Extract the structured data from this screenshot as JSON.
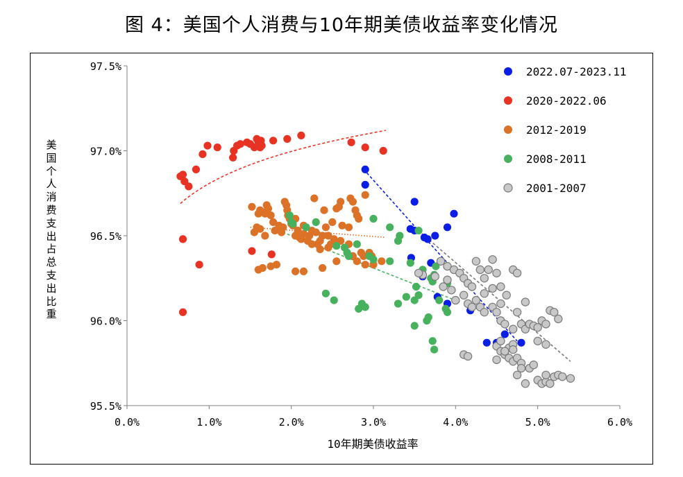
{
  "title": "图 4：美国个人消费与10年期美债收益率变化情况",
  "chart_data": {
    "type": "scatter",
    "xlabel": "10年期美债收益率",
    "ylabel": "美国个人消费支出占总支出比重",
    "xlim": [
      0.0,
      6.0
    ],
    "ylim": [
      95.5,
      97.5
    ],
    "x_ticks": [
      0,
      1,
      2,
      3,
      4,
      5,
      6
    ],
    "y_ticks": [
      95.5,
      96.0,
      96.5,
      97.0,
      97.5
    ],
    "x_tick_labels": [
      "0.0%",
      "1.0%",
      "2.0%",
      "3.0%",
      "4.0%",
      "5.0%",
      "6.0%"
    ],
    "y_tick_labels": [
      "95.5%",
      "96.0%",
      "96.5%",
      "97.0%",
      "97.5%"
    ],
    "grid": false,
    "legend_position": "top-right",
    "series": [
      {
        "name": "2022.07-2023.11",
        "color": "#0b1ee6",
        "hollow": false,
        "trend": {
          "type": "line",
          "x": [
            2.92,
            4.75
          ],
          "y": [
            96.87,
            95.88
          ],
          "style": "dashed"
        },
        "points": [
          [
            2.9,
            96.89
          ],
          [
            2.9,
            96.8
          ],
          [
            3.5,
            96.7
          ],
          [
            3.98,
            96.63
          ],
          [
            3.9,
            96.55
          ],
          [
            3.45,
            96.54
          ],
          [
            3.5,
            96.53
          ],
          [
            3.75,
            96.5
          ],
          [
            3.62,
            96.49
          ],
          [
            3.66,
            96.48
          ],
          [
            3.46,
            96.37
          ],
          [
            3.7,
            96.34
          ],
          [
            3.6,
            96.26
          ],
          [
            3.78,
            96.14
          ],
          [
            3.9,
            96.1
          ],
          [
            4.18,
            96.06
          ],
          [
            4.6,
            95.92
          ],
          [
            4.38,
            95.87
          ],
          [
            4.5,
            95.87
          ],
          [
            4.8,
            95.87
          ]
        ]
      },
      {
        "name": "2020-2022.06",
        "color": "#e83223",
        "hollow": false,
        "trend": {
          "type": "log",
          "x": [
            0.65,
            3.15
          ],
          "y": [
            96.69,
            97.12
          ],
          "style": "dashed"
        },
        "points": [
          [
            0.65,
            96.85
          ],
          [
            0.68,
            96.86
          ],
          [
            0.7,
            96.82
          ],
          [
            0.75,
            96.79
          ],
          [
            0.84,
            96.89
          ],
          [
            0.92,
            96.98
          ],
          [
            0.98,
            97.03
          ],
          [
            1.1,
            97.02
          ],
          [
            1.29,
            96.96
          ],
          [
            1.3,
            97.0
          ],
          [
            1.34,
            97.03
          ],
          [
            1.38,
            97.04
          ],
          [
            1.46,
            97.05
          ],
          [
            1.5,
            97.04
          ],
          [
            1.55,
            97.02
          ],
          [
            1.58,
            97.07
          ],
          [
            1.6,
            97.05
          ],
          [
            1.63,
            97.06
          ],
          [
            1.62,
            97.02
          ],
          [
            1.64,
            97.03
          ],
          [
            1.78,
            97.06
          ],
          [
            1.95,
            97.07
          ],
          [
            2.12,
            97.09
          ],
          [
            2.73,
            97.05
          ],
          [
            2.9,
            97.02
          ],
          [
            3.12,
            97.0
          ],
          [
            0.68,
            96.48
          ],
          [
            0.88,
            96.33
          ],
          [
            1.52,
            96.41
          ],
          [
            1.76,
            96.39
          ],
          [
            0.68,
            96.05
          ]
        ]
      },
      {
        "name": "2012-2019",
        "color": "#db7228",
        "hollow": false,
        "trend": {
          "type": "line",
          "x": [
            1.5,
            3.15
          ],
          "y": [
            96.55,
            96.49
          ],
          "style": "dotted"
        },
        "points": [
          [
            1.52,
            96.67
          ],
          [
            1.58,
            96.55
          ],
          [
            1.6,
            96.63
          ],
          [
            1.62,
            96.65
          ],
          [
            1.65,
            96.64
          ],
          [
            1.68,
            96.63
          ],
          [
            1.7,
            96.68
          ],
          [
            1.72,
            96.66
          ],
          [
            1.75,
            96.62
          ],
          [
            1.78,
            96.58
          ],
          [
            1.8,
            96.53
          ],
          [
            1.85,
            96.56
          ],
          [
            1.88,
            96.52
          ],
          [
            1.9,
            96.55
          ],
          [
            1.92,
            96.7
          ],
          [
            1.94,
            96.68
          ],
          [
            1.96,
            96.62
          ],
          [
            1.98,
            96.6
          ],
          [
            2.0,
            96.57
          ],
          [
            2.02,
            96.56
          ],
          [
            2.05,
            96.5
          ],
          [
            2.08,
            96.53
          ],
          [
            2.1,
            96.49
          ],
          [
            2.12,
            96.48
          ],
          [
            2.15,
            96.51
          ],
          [
            2.18,
            96.55
          ],
          [
            2.2,
            96.47
          ],
          [
            2.22,
            96.5
          ],
          [
            2.25,
            96.45
          ],
          [
            2.28,
            96.72
          ],
          [
            2.3,
            96.52
          ],
          [
            2.32,
            96.45
          ],
          [
            2.35,
            96.42
          ],
          [
            2.38,
            96.5
          ],
          [
            2.4,
            96.65
          ],
          [
            2.42,
            96.55
          ],
          [
            2.45,
            96.5
          ],
          [
            2.48,
            96.45
          ],
          [
            2.5,
            96.58
          ],
          [
            2.52,
            96.48
          ],
          [
            2.55,
            96.66
          ],
          [
            2.58,
            96.67
          ],
          [
            2.6,
            96.7
          ],
          [
            2.62,
            96.56
          ],
          [
            2.65,
            96.43
          ],
          [
            2.68,
            96.4
          ],
          [
            2.7,
            96.45
          ],
          [
            2.72,
            96.72
          ],
          [
            2.75,
            96.7
          ],
          [
            2.78,
            96.65
          ],
          [
            2.8,
            96.62
          ],
          [
            2.82,
            96.6
          ],
          [
            2.85,
            96.4
          ],
          [
            2.88,
            96.38
          ],
          [
            2.9,
            96.74
          ],
          [
            2.95,
            96.4
          ],
          [
            2.98,
            96.38
          ],
          [
            3.0,
            96.33
          ],
          [
            3.1,
            96.35
          ],
          [
            1.6,
            96.3
          ],
          [
            1.65,
            96.31
          ],
          [
            1.75,
            96.32
          ],
          [
            1.82,
            96.33
          ],
          [
            2.05,
            96.29
          ],
          [
            2.15,
            96.29
          ],
          [
            2.38,
            96.31
          ],
          [
            2.55,
            96.35
          ],
          [
            2.75,
            96.38
          ],
          [
            1.55,
            96.52
          ],
          [
            1.62,
            96.54
          ],
          [
            1.68,
            96.5
          ],
          [
            1.95,
            96.65
          ],
          [
            2.05,
            96.6
          ],
          [
            2.15,
            96.56
          ],
          [
            2.25,
            96.53
          ],
          [
            2.35,
            96.47
          ],
          [
            2.45,
            96.43
          ],
          [
            2.6,
            96.47
          ],
          [
            2.7,
            96.55
          ],
          [
            2.8,
            96.35
          ],
          [
            2.9,
            96.33
          ]
        ]
      },
      {
        "name": "2008-2011",
        "color": "#47b15d",
        "hollow": false,
        "trend": {
          "type": "line",
          "x": [
            1.95,
            4.05
          ],
          "y": [
            96.51,
            96.11
          ],
          "style": "dashed"
        },
        "points": [
          [
            1.98,
            96.62
          ],
          [
            2.0,
            96.58
          ],
          [
            2.02,
            96.57
          ],
          [
            2.18,
            96.55
          ],
          [
            2.3,
            96.58
          ],
          [
            2.42,
            96.16
          ],
          [
            2.52,
            96.12
          ],
          [
            2.55,
            96.44
          ],
          [
            2.65,
            96.43
          ],
          [
            2.68,
            96.4
          ],
          [
            2.8,
            96.45
          ],
          [
            2.82,
            96.07
          ],
          [
            2.86,
            96.1
          ],
          [
            2.9,
            96.08
          ],
          [
            3.0,
            96.6
          ],
          [
            3.2,
            96.55
          ],
          [
            3.3,
            96.47
          ],
          [
            3.3,
            96.1
          ],
          [
            3.32,
            96.5
          ],
          [
            3.4,
            96.14
          ],
          [
            3.45,
            96.34
          ],
          [
            3.5,
            96.12
          ],
          [
            3.52,
            96.2
          ],
          [
            3.55,
            96.15
          ],
          [
            3.55,
            96.53
          ],
          [
            3.65,
            96.0
          ],
          [
            3.67,
            96.02
          ],
          [
            3.7,
            96.25
          ],
          [
            3.72,
            96.23
          ],
          [
            3.74,
            96.27
          ],
          [
            3.76,
            96.32
          ],
          [
            3.8,
            96.12
          ],
          [
            3.88,
            96.07
          ],
          [
            3.9,
            96.05
          ],
          [
            3.5,
            95.97
          ],
          [
            3.72,
            95.88
          ],
          [
            3.74,
            95.83
          ],
          [
            3.2,
            96.35
          ],
          [
            3.0,
            96.36
          ],
          [
            2.95,
            96.38
          ],
          [
            2.7,
            96.38
          ],
          [
            3.6,
            96.3
          ],
          [
            3.9,
            96.22
          ]
        ]
      },
      {
        "name": "2001-2007",
        "color": "#c8c8c8",
        "hollow": true,
        "trend": {
          "type": "line",
          "x": [
            3.5,
            5.4
          ],
          "y": [
            96.55,
            95.76
          ],
          "style": "dashed"
        },
        "points": [
          [
            3.82,
            96.35
          ],
          [
            3.9,
            96.32
          ],
          [
            3.98,
            96.3
          ],
          [
            4.05,
            96.28
          ],
          [
            4.1,
            96.25
          ],
          [
            4.15,
            96.22
          ],
          [
            4.2,
            96.2
          ],
          [
            4.25,
            96.35
          ],
          [
            4.3,
            96.3
          ],
          [
            4.35,
            96.25
          ],
          [
            4.4,
            96.3
          ],
          [
            4.45,
            96.36
          ],
          [
            4.5,
            96.28
          ],
          [
            4.55,
            96.2
          ],
          [
            4.62,
            96.15
          ],
          [
            4.7,
            96.3
          ],
          [
            4.75,
            96.28
          ],
          [
            3.85,
            96.2
          ],
          [
            3.95,
            96.18
          ],
          [
            4.0,
            96.12
          ],
          [
            4.1,
            96.15
          ],
          [
            4.15,
            96.1
          ],
          [
            4.2,
            96.08
          ],
          [
            4.25,
            96.12
          ],
          [
            4.3,
            96.08
          ],
          [
            4.35,
            96.05
          ],
          [
            4.45,
            96.08
          ],
          [
            4.5,
            96.05
          ],
          [
            4.55,
            96.0
          ],
          [
            4.6,
            95.98
          ],
          [
            4.7,
            95.95
          ],
          [
            4.75,
            96.05
          ],
          [
            4.8,
            95.98
          ],
          [
            4.85,
            95.95
          ],
          [
            4.9,
            95.98
          ],
          [
            4.95,
            95.97
          ],
          [
            5.0,
            95.96
          ],
          [
            5.05,
            96.0
          ],
          [
            5.1,
            95.98
          ],
          [
            5.15,
            96.06
          ],
          [
            5.2,
            96.05
          ],
          [
            5.25,
            96.01
          ],
          [
            4.5,
            95.85
          ],
          [
            4.55,
            95.82
          ],
          [
            4.6,
            95.8
          ],
          [
            4.65,
            95.78
          ],
          [
            4.7,
            95.76
          ],
          [
            4.75,
            95.78
          ],
          [
            4.8,
            95.75
          ],
          [
            4.55,
            95.88
          ],
          [
            4.65,
            95.84
          ],
          [
            4.7,
            95.86
          ],
          [
            4.5,
            95.77
          ],
          [
            4.6,
            95.82
          ],
          [
            4.7,
            95.83
          ],
          [
            4.8,
            95.72
          ],
          [
            4.85,
            95.63
          ],
          [
            4.9,
            95.72
          ],
          [
            4.95,
            95.74
          ],
          [
            5.0,
            95.65
          ],
          [
            5.05,
            95.63
          ],
          [
            5.1,
            95.64
          ],
          [
            5.15,
            95.63
          ],
          [
            5.2,
            95.67
          ],
          [
            5.25,
            95.68
          ],
          [
            5.3,
            95.67
          ],
          [
            5.4,
            95.66
          ],
          [
            4.75,
            95.68
          ],
          [
            5.1,
            95.68
          ],
          [
            4.1,
            95.8
          ],
          [
            4.15,
            95.79
          ],
          [
            3.6,
            96.27
          ],
          [
            3.75,
            96.26
          ],
          [
            3.9,
            96.24
          ],
          [
            4.35,
            96.16
          ],
          [
            4.45,
            96.19
          ],
          [
            4.55,
            96.1
          ],
          [
            4.85,
            96.11
          ],
          [
            5.0,
            95.88
          ],
          [
            5.1,
            95.86
          ],
          [
            3.55,
            96.28
          ]
        ]
      }
    ]
  }
}
